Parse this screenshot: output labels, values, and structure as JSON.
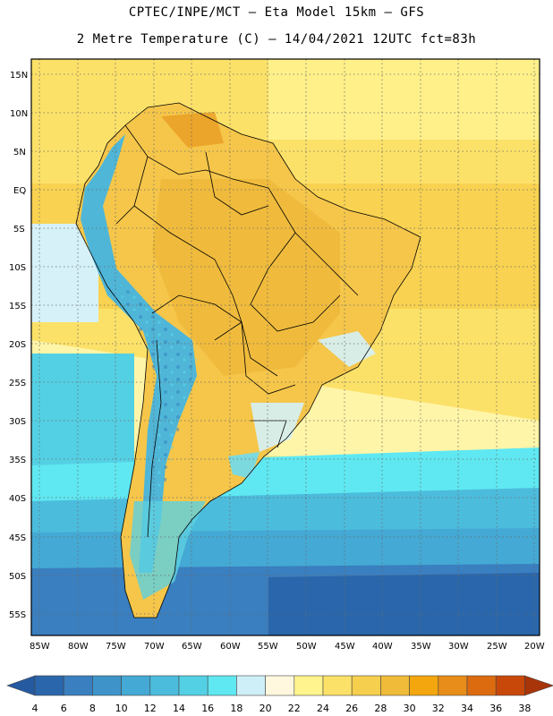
{
  "header": {
    "line1": "CPTEC/INPE/MCT –  Eta Model 15km – GFS",
    "line2": "2 Metre Temperature (C) – 14/04/2021 12UTC fct=83h"
  },
  "map": {
    "lat_labels": [
      "15N",
      "10N",
      "5N",
      "EQ",
      "5S",
      "10S",
      "15S",
      "20S",
      "25S",
      "30S",
      "35S",
      "40S",
      "45S",
      "50S",
      "55S"
    ],
    "lon_labels": [
      "85W",
      "80W",
      "75W",
      "70W",
      "65W",
      "60W",
      "55W",
      "50W",
      "45W",
      "40W",
      "35W",
      "30W",
      "25W",
      "20W"
    ]
  },
  "colorbar": {
    "ticks": [
      "4",
      "6",
      "8",
      "10",
      "12",
      "14",
      "16",
      "18",
      "20",
      "22",
      "24",
      "26",
      "28",
      "30",
      "32",
      "34",
      "36",
      "38"
    ],
    "colors": [
      "#2a66ab",
      "#3a7fbf",
      "#3e94c8",
      "#44a9d4",
      "#4cbcdc",
      "#54d0e4",
      "#5fe8f2",
      "#cfeff8",
      "#fff8de",
      "#fff48e",
      "#fce169",
      "#f6cf4f",
      "#efbb38",
      "#f3a60d",
      "#e88d1a",
      "#dc6b10",
      "#c8480a",
      "#a8340a"
    ]
  }
}
